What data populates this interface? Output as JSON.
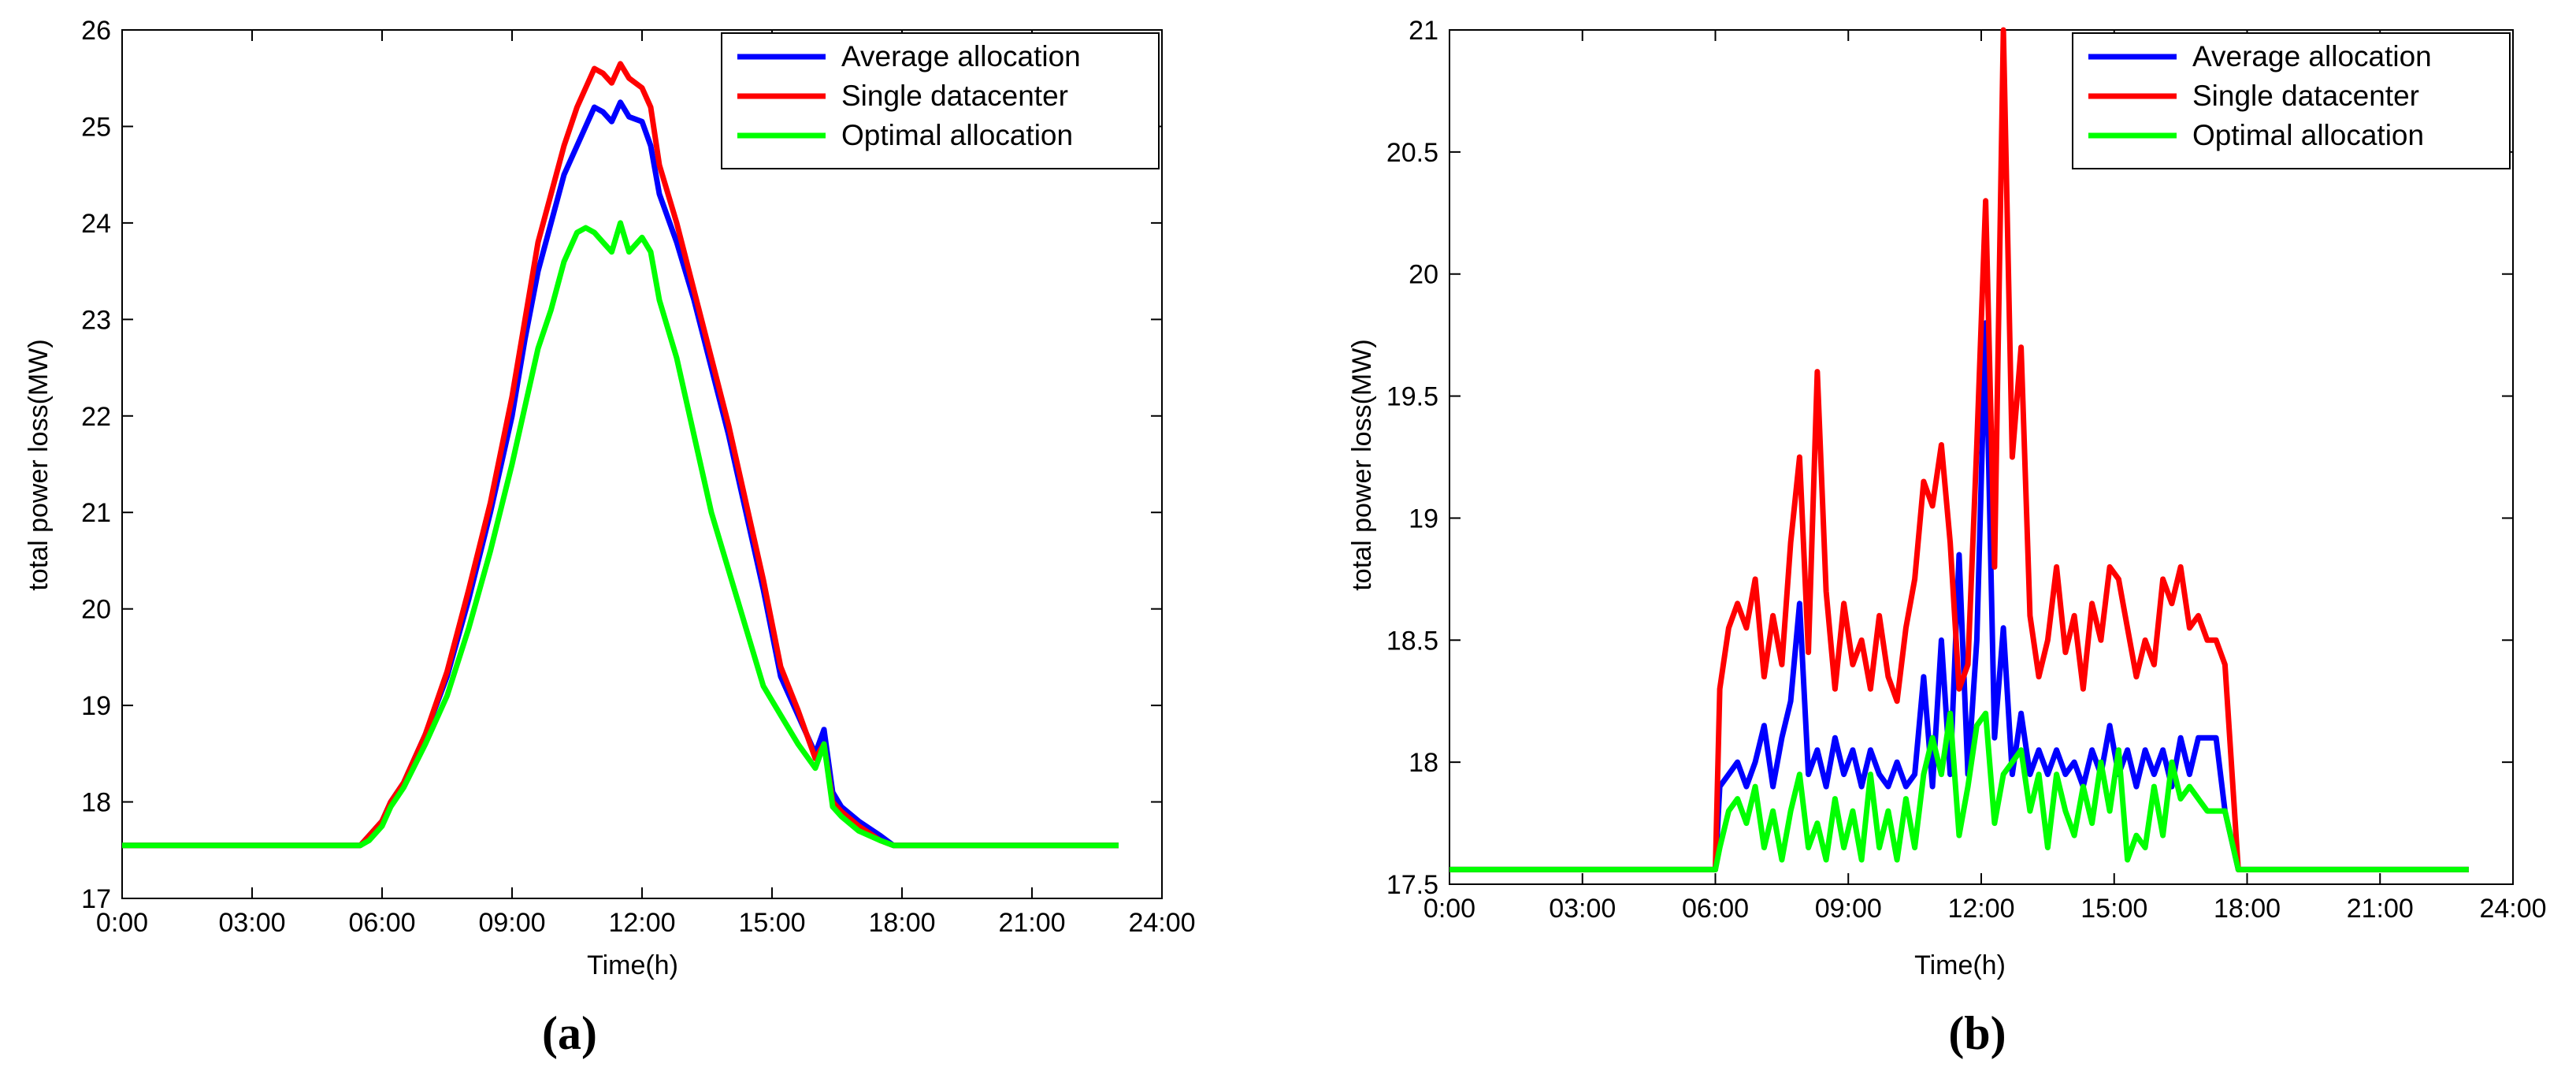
{
  "figure": {
    "colors": {
      "Average allocation": "#0000ff",
      "Single datacenter": "#ff0000",
      "Optimal allocation": "#00ff00",
      "axis": "#000000"
    }
  },
  "chart_data": [
    {
      "panel": "(a)",
      "type": "line",
      "title": "",
      "xlabel": "Time(h)",
      "ylabel": "total power loss(MW)",
      "xlim": [
        0,
        24
      ],
      "ylim": [
        17,
        26
      ],
      "xticks": [
        0,
        3,
        6,
        9,
        12,
        15,
        18,
        21,
        24
      ],
      "xtick_labels": [
        "0:00",
        "03:00",
        "06:00",
        "09:00",
        "12:00",
        "15:00",
        "18:00",
        "21:00",
        "24:00"
      ],
      "yticks": [
        17,
        18,
        19,
        20,
        21,
        22,
        23,
        24,
        25,
        26
      ],
      "ytick_labels": [
        "17",
        "18",
        "19",
        "20",
        "21",
        "22",
        "23",
        "24",
        "25",
        "26"
      ],
      "legend": [
        "Average allocation",
        "Single datacenter",
        "Optimal allocation"
      ],
      "legend_position": "top-right",
      "series": [
        {
          "name": "Average allocation",
          "color": "#0000ff",
          "x": [
            0,
            5.5,
            5.7,
            6,
            6.2,
            6.5,
            7,
            7.5,
            8,
            8.5,
            9,
            9.3,
            9.6,
            9.9,
            10.2,
            10.5,
            10.7,
            10.9,
            11.1,
            11.3,
            11.5,
            11.7,
            12,
            12.2,
            12.4,
            12.8,
            13.2,
            13.6,
            14,
            14.4,
            14.8,
            15.2,
            15.6,
            16,
            16.2,
            16.4,
            16.6,
            17,
            17.5,
            17.8,
            18,
            23
          ],
          "y": [
            17.55,
            17.55,
            17.65,
            17.8,
            18.0,
            18.2,
            18.7,
            19.3,
            20.1,
            21.0,
            22.0,
            22.8,
            23.5,
            24.0,
            24.5,
            24.8,
            25.0,
            25.2,
            25.15,
            25.05,
            25.25,
            25.1,
            25.05,
            24.8,
            24.3,
            23.8,
            23.2,
            22.5,
            21.8,
            21.0,
            20.2,
            19.3,
            18.9,
            18.5,
            18.75,
            18.1,
            17.95,
            17.8,
            17.65,
            17.55,
            17.55,
            17.55
          ]
        },
        {
          "name": "Single datacenter",
          "color": "#ff0000",
          "x": [
            0,
            5.5,
            5.7,
            6,
            6.2,
            6.5,
            7,
            7.5,
            8,
            8.5,
            9,
            9.3,
            9.6,
            9.9,
            10.2,
            10.5,
            10.7,
            10.9,
            11.1,
            11.3,
            11.5,
            11.7,
            12,
            12.2,
            12.4,
            12.8,
            13.2,
            13.6,
            14,
            14.4,
            14.8,
            15.2,
            15.6,
            16,
            16.2,
            16.4,
            16.6,
            17,
            17.5,
            17.8,
            18,
            23
          ],
          "y": [
            17.55,
            17.55,
            17.65,
            17.8,
            18.0,
            18.2,
            18.7,
            19.35,
            20.2,
            21.1,
            22.2,
            23.0,
            23.8,
            24.3,
            24.8,
            25.2,
            25.4,
            25.6,
            25.55,
            25.45,
            25.65,
            25.5,
            25.4,
            25.2,
            24.6,
            24.0,
            23.3,
            22.6,
            21.9,
            21.1,
            20.3,
            19.4,
            18.95,
            18.45,
            18.6,
            18.0,
            17.9,
            17.75,
            17.6,
            17.55,
            17.55,
            17.55
          ]
        },
        {
          "name": "Optimal allocation",
          "color": "#00ff00",
          "x": [
            0,
            5.5,
            5.7,
            6,
            6.2,
            6.5,
            7,
            7.5,
            8,
            8.5,
            9,
            9.3,
            9.6,
            9.9,
            10.2,
            10.5,
            10.7,
            10.9,
            11.1,
            11.3,
            11.5,
            11.7,
            12,
            12.2,
            12.4,
            12.8,
            13.2,
            13.6,
            14,
            14.4,
            14.8,
            15.2,
            15.6,
            16,
            16.2,
            16.4,
            16.6,
            17,
            17.5,
            17.8,
            18,
            23
          ],
          "y": [
            17.55,
            17.55,
            17.6,
            17.75,
            17.95,
            18.15,
            18.6,
            19.1,
            19.8,
            20.6,
            21.5,
            22.1,
            22.7,
            23.1,
            23.6,
            23.9,
            23.95,
            23.9,
            23.8,
            23.7,
            24.0,
            23.7,
            23.85,
            23.7,
            23.2,
            22.6,
            21.8,
            21.0,
            20.4,
            19.8,
            19.2,
            18.9,
            18.6,
            18.35,
            18.6,
            17.95,
            17.85,
            17.7,
            17.6,
            17.55,
            17.55,
            17.55
          ]
        }
      ]
    },
    {
      "panel": "(b)",
      "type": "line",
      "title": "",
      "xlabel": "Time(h)",
      "ylabel": "total power loss(MW)",
      "xlim": [
        0,
        24
      ],
      "ylim": [
        17.5,
        21
      ],
      "xticks": [
        0,
        3,
        6,
        9,
        12,
        15,
        18,
        21,
        24
      ],
      "xtick_labels": [
        "0:00",
        "03:00",
        "06:00",
        "09:00",
        "12:00",
        "15:00",
        "18:00",
        "21:00",
        "24:00"
      ],
      "yticks": [
        17.5,
        18,
        18.5,
        19,
        19.5,
        20,
        20.5,
        21
      ],
      "ytick_labels": [
        "17.5",
        "18",
        "18.5",
        "19",
        "19.5",
        "20",
        "20.5",
        "21"
      ],
      "legend": [
        "Average allocation",
        "Single datacenter",
        "Optimal allocation"
      ],
      "legend_position": "top-right",
      "series": [
        {
          "name": "Average allocation",
          "color": "#0000ff",
          "x": [
            0,
            6,
            6.1,
            6.3,
            6.5,
            6.7,
            6.9,
            7.1,
            7.3,
            7.5,
            7.7,
            7.9,
            8.1,
            8.3,
            8.5,
            8.7,
            8.9,
            9.1,
            9.3,
            9.5,
            9.7,
            9.9,
            10.1,
            10.3,
            10.5,
            10.7,
            10.9,
            11.1,
            11.3,
            11.5,
            11.7,
            11.9,
            12.1,
            12.3,
            12.5,
            12.7,
            12.9,
            13.1,
            13.3,
            13.5,
            13.7,
            13.9,
            14.1,
            14.3,
            14.5,
            14.7,
            14.9,
            15.1,
            15.3,
            15.5,
            15.7,
            15.9,
            16.1,
            16.3,
            16.5,
            16.7,
            16.9,
            17.1,
            17.3,
            17.5,
            17.8,
            23
          ],
          "y": [
            17.56,
            17.56,
            17.9,
            17.95,
            18.0,
            17.9,
            18.0,
            18.15,
            17.9,
            18.1,
            18.25,
            18.65,
            17.95,
            18.05,
            17.9,
            18.1,
            17.95,
            18.05,
            17.9,
            18.05,
            17.95,
            17.9,
            18.0,
            17.9,
            17.95,
            18.35,
            17.9,
            18.5,
            17.95,
            18.85,
            17.95,
            18.5,
            19.8,
            18.1,
            18.55,
            17.95,
            18.2,
            17.95,
            18.05,
            17.95,
            18.05,
            17.95,
            18.0,
            17.9,
            18.05,
            17.95,
            18.15,
            17.95,
            18.05,
            17.9,
            18.05,
            17.95,
            18.05,
            17.9,
            18.1,
            17.95,
            18.1,
            18.1,
            18.1,
            17.8,
            17.56,
            17.56
          ]
        },
        {
          "name": "Single datacenter",
          "color": "#ff0000",
          "x": [
            0,
            6,
            6.1,
            6.3,
            6.5,
            6.7,
            6.9,
            7.1,
            7.3,
            7.5,
            7.7,
            7.9,
            8.1,
            8.3,
            8.5,
            8.7,
            8.9,
            9.1,
            9.3,
            9.5,
            9.7,
            9.9,
            10.1,
            10.3,
            10.5,
            10.7,
            10.9,
            11.1,
            11.3,
            11.5,
            11.7,
            11.9,
            12.1,
            12.3,
            12.5,
            12.7,
            12.9,
            13.1,
            13.3,
            13.5,
            13.7,
            13.9,
            14.1,
            14.3,
            14.5,
            14.7,
            14.9,
            15.1,
            15.3,
            15.5,
            15.7,
            15.9,
            16.1,
            16.3,
            16.5,
            16.7,
            16.9,
            17.1,
            17.3,
            17.5,
            17.8,
            23
          ],
          "y": [
            17.56,
            17.56,
            18.3,
            18.55,
            18.65,
            18.55,
            18.75,
            18.35,
            18.6,
            18.4,
            18.9,
            19.25,
            18.45,
            19.6,
            18.7,
            18.3,
            18.65,
            18.4,
            18.5,
            18.3,
            18.6,
            18.35,
            18.25,
            18.55,
            18.75,
            19.15,
            19.05,
            19.3,
            18.9,
            18.3,
            18.4,
            19.3,
            20.3,
            18.8,
            21.0,
            19.25,
            19.7,
            18.6,
            18.35,
            18.5,
            18.8,
            18.45,
            18.6,
            18.3,
            18.65,
            18.5,
            18.8,
            18.75,
            18.55,
            18.35,
            18.5,
            18.4,
            18.75,
            18.65,
            18.8,
            18.55,
            18.6,
            18.5,
            18.5,
            18.4,
            17.56,
            17.56
          ]
        },
        {
          "name": "Optimal allocation",
          "color": "#00ff00",
          "x": [
            0,
            6,
            6.1,
            6.3,
            6.5,
            6.7,
            6.9,
            7.1,
            7.3,
            7.5,
            7.7,
            7.9,
            8.1,
            8.3,
            8.5,
            8.7,
            8.9,
            9.1,
            9.3,
            9.5,
            9.7,
            9.9,
            10.1,
            10.3,
            10.5,
            10.7,
            10.9,
            11.1,
            11.3,
            11.5,
            11.7,
            11.9,
            12.1,
            12.3,
            12.5,
            12.7,
            12.9,
            13.1,
            13.3,
            13.5,
            13.7,
            13.9,
            14.1,
            14.3,
            14.5,
            14.7,
            14.9,
            15.1,
            15.3,
            15.5,
            15.7,
            15.9,
            16.1,
            16.3,
            16.5,
            16.7,
            16.9,
            17.1,
            17.3,
            17.5,
            17.8,
            23
          ],
          "y": [
            17.56,
            17.56,
            17.65,
            17.8,
            17.85,
            17.75,
            17.9,
            17.65,
            17.8,
            17.6,
            17.8,
            17.95,
            17.65,
            17.75,
            17.6,
            17.85,
            17.65,
            17.8,
            17.6,
            17.95,
            17.65,
            17.8,
            17.6,
            17.85,
            17.65,
            17.95,
            18.1,
            17.95,
            18.2,
            17.7,
            17.9,
            18.15,
            18.2,
            17.75,
            17.95,
            18.0,
            18.05,
            17.8,
            17.95,
            17.65,
            17.95,
            17.8,
            17.7,
            17.9,
            17.75,
            18.0,
            17.8,
            18.05,
            17.6,
            17.7,
            17.65,
            17.9,
            17.7,
            18.0,
            17.85,
            17.9,
            17.85,
            17.8,
            17.8,
            17.8,
            17.56,
            17.56
          ]
        }
      ]
    }
  ]
}
